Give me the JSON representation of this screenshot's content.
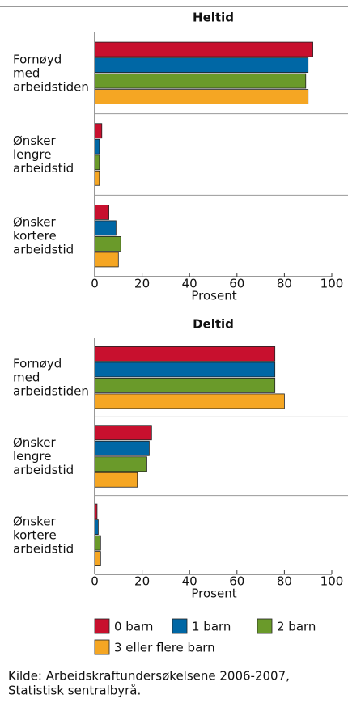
{
  "chart_data": [
    {
      "type": "barh",
      "title": "Heltid",
      "xlabel": "Prosent",
      "categories": [
        "Fornøyd med arbeidstiden",
        "Ønsker lengre arbeidstid",
        "Ønsker kortere arbeidstid"
      ],
      "series": [
        {
          "name": "0 barn",
          "color": "#c8102e",
          "values": [
            92,
            3,
            6
          ]
        },
        {
          "name": "1 barn",
          "color": "#0067a5",
          "values": [
            90,
            2,
            9
          ]
        },
        {
          "name": "2 barn",
          "color": "#6a9a2a",
          "values": [
            89,
            2,
            11
          ]
        },
        {
          "name": "3 eller flere barn",
          "color": "#f5a623",
          "values": [
            90,
            2,
            10
          ]
        }
      ],
      "xlim": [
        0,
        100
      ],
      "xticks": [
        0,
        20,
        40,
        60,
        80,
        100
      ]
    },
    {
      "type": "barh",
      "title": "Deltid",
      "xlabel": "Prosent",
      "categories": [
        "Fornøyd med arbeidstiden",
        "Ønsker lengre arbeidstid",
        "Ønsker kortere arbeidstid"
      ],
      "series": [
        {
          "name": "0 barn",
          "color": "#c8102e",
          "values": [
            76,
            24,
            1
          ]
        },
        {
          "name": "1 barn",
          "color": "#0067a5",
          "values": [
            76,
            23,
            1.5
          ]
        },
        {
          "name": "2 barn",
          "color": "#6a9a2a",
          "values": [
            76,
            22,
            2.5
          ]
        },
        {
          "name": "3 eller flere barn",
          "color": "#f5a623",
          "values": [
            80,
            18,
            2.5
          ]
        }
      ],
      "xlim": [
        0,
        100
      ],
      "xticks": [
        0,
        20,
        40,
        60,
        80,
        100
      ]
    }
  ],
  "source": [
    "Kilde: Arbeidskraftundersøkelsene 2006-2007,",
    "Statistisk sentralbyrå."
  ]
}
